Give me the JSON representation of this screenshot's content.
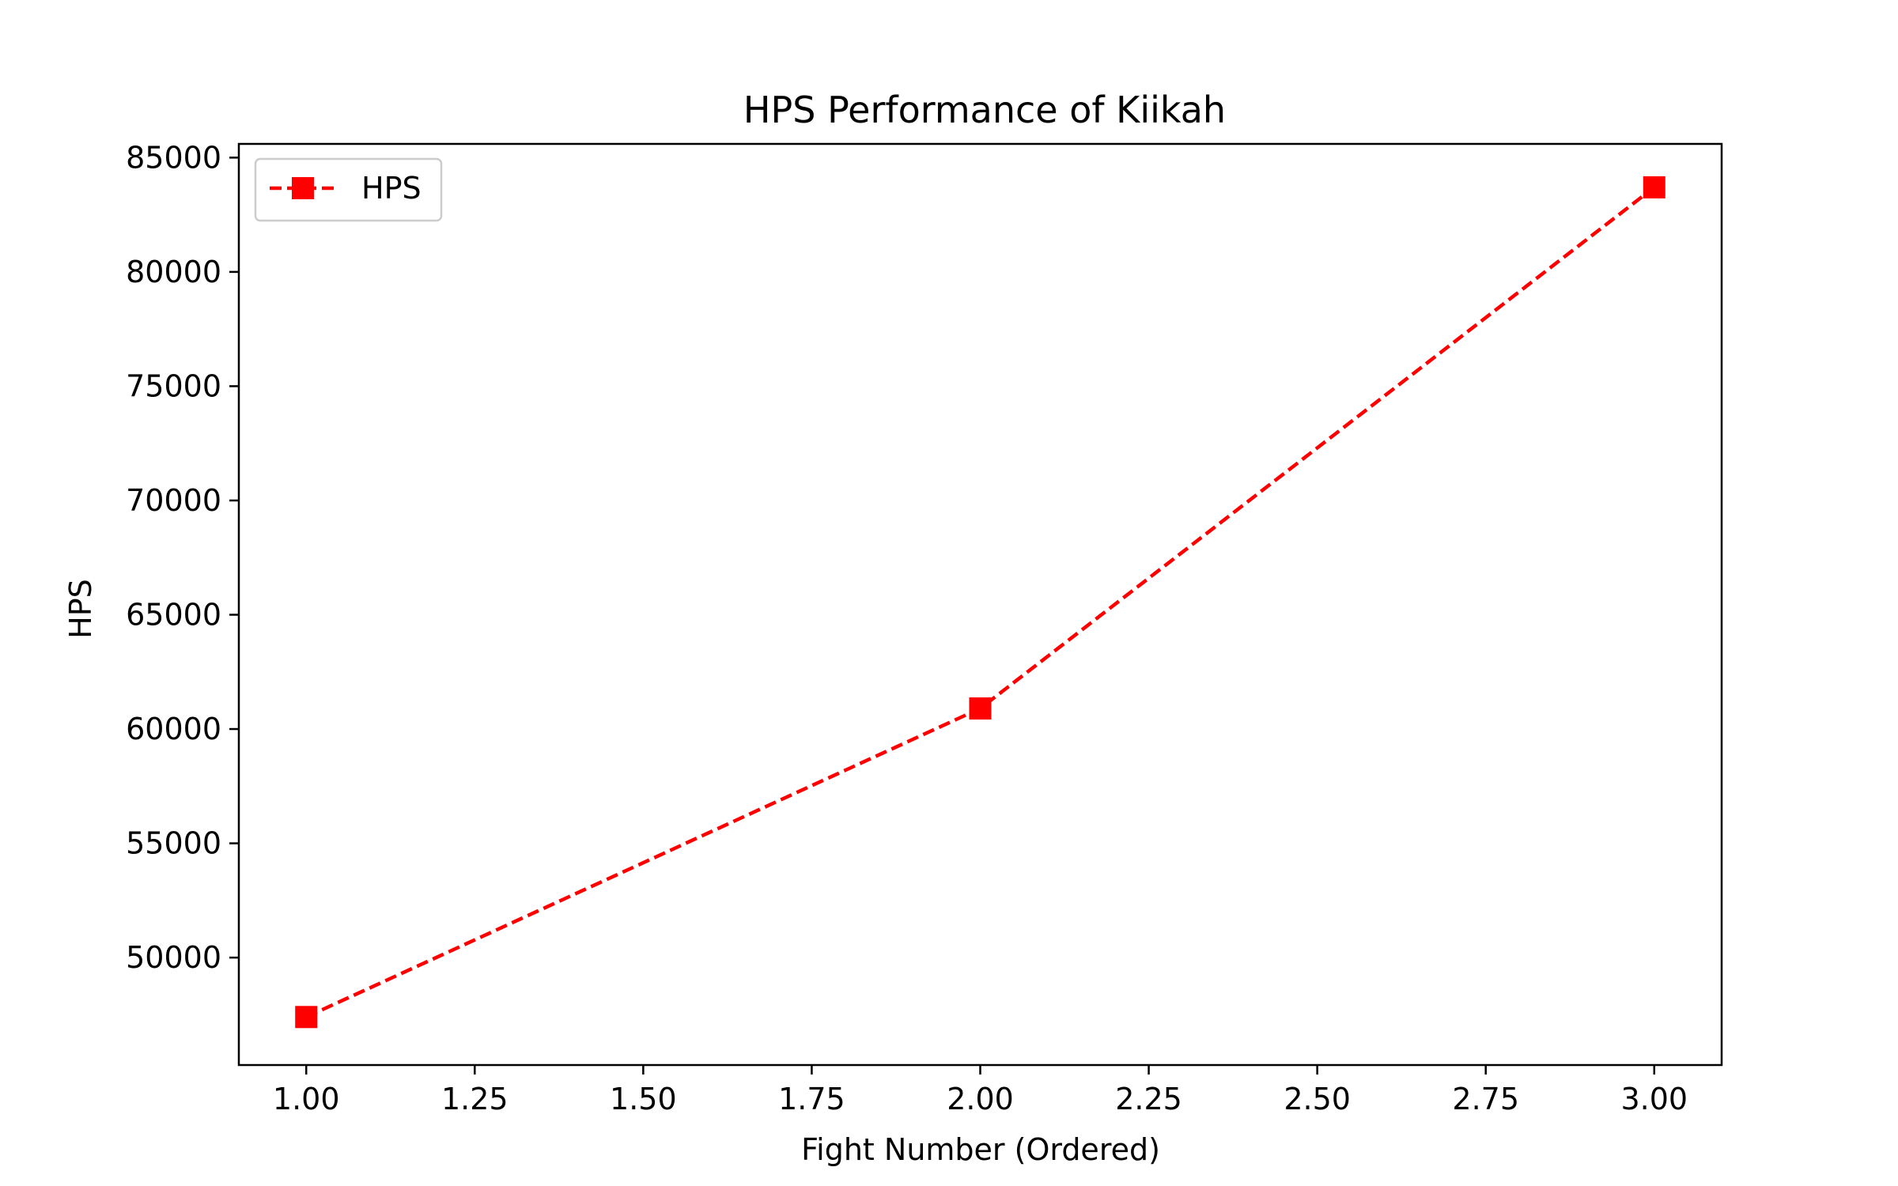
{
  "chart_data": {
    "type": "line",
    "title": "HPS Performance of Kiikah",
    "xlabel": "Fight Number (Ordered)",
    "ylabel": "HPS",
    "xlim": [
      0.9,
      3.1
    ],
    "ylim": [
      45300,
      85600
    ],
    "xticks": [
      1.0,
      1.25,
      1.5,
      1.75,
      2.0,
      2.25,
      2.5,
      2.75,
      3.0
    ],
    "xtick_labels": [
      "1.00",
      "1.25",
      "1.50",
      "1.75",
      "2.00",
      "2.25",
      "2.50",
      "2.75",
      "3.00"
    ],
    "yticks": [
      50000,
      55000,
      60000,
      65000,
      70000,
      75000,
      80000,
      85000
    ],
    "ytick_labels": [
      "50000",
      "55000",
      "60000",
      "65000",
      "70000",
      "75000",
      "80000",
      "85000"
    ],
    "grid": false,
    "legend_position": "upper-left",
    "series": [
      {
        "name": "HPS",
        "color": "#ff0000",
        "line_style": "dashed",
        "marker": "square",
        "x": [
          1,
          2,
          3
        ],
        "y": [
          47400,
          60900,
          83700
        ]
      }
    ]
  }
}
